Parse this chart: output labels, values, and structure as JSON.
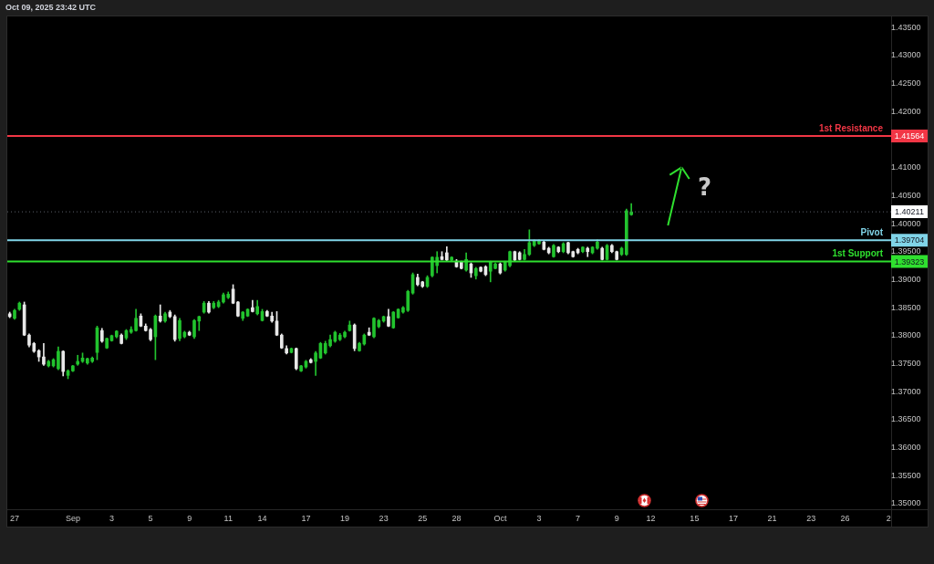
{
  "chart_data": {
    "type": "candlestick",
    "title": "Oct 09, 2025 23:42 UTC",
    "categories": [
      null,
      "27",
      null,
      null,
      null,
      null,
      null,
      null,
      null,
      null,
      null,
      null,
      null,
      "Sep",
      null,
      null,
      null,
      null,
      null,
      null,
      null,
      "3",
      null,
      null,
      null,
      null,
      null,
      null,
      null,
      "5",
      null,
      null,
      null,
      null,
      null,
      null,
      null,
      "9",
      null,
      null,
      null,
      null,
      null,
      null,
      null,
      "11",
      null,
      null,
      null,
      null,
      null,
      null,
      "14",
      null,
      null,
      null,
      null,
      null,
      null,
      null,
      null,
      "17",
      null,
      null,
      null,
      null,
      null,
      null,
      null,
      "19",
      null,
      null,
      null,
      null,
      null,
      null,
      null,
      "23",
      null,
      null,
      null,
      null,
      null,
      null,
      null,
      "25",
      null,
      null,
      null,
      null,
      null,
      null,
      "28",
      null,
      null,
      null,
      null,
      null,
      null,
      null,
      null,
      "Oct",
      null,
      null,
      null,
      null,
      null,
      null,
      null,
      "3",
      null,
      null,
      null,
      null,
      null,
      null,
      null,
      "7",
      null,
      null,
      null,
      null,
      null,
      null,
      null,
      "9",
      null,
      null,
      null,
      null,
      null,
      null,
      "12",
      null,
      null,
      null,
      null,
      null,
      null,
      null,
      null,
      "15",
      null,
      null,
      null,
      null,
      null,
      null,
      null,
      "17",
      null,
      null,
      null,
      null,
      null,
      null,
      null,
      "21",
      null,
      null,
      null,
      null,
      null,
      null,
      null,
      "23",
      null,
      null,
      null,
      null,
      null,
      null,
      "26",
      null,
      null,
      null,
      null,
      null,
      null,
      null,
      null,
      "2"
    ],
    "ohlc": [
      [
        1.3839,
        1.3842,
        1.3832,
        1.3834
      ],
      [
        1.3831,
        1.3847,
        1.3829,
        1.3845
      ],
      [
        1.3847,
        1.386,
        1.3845,
        1.3858
      ],
      [
        1.3855,
        1.386,
        1.38,
        1.3801
      ],
      [
        1.3801,
        1.3803,
        1.378,
        1.3783
      ],
      [
        1.3786,
        1.3788,
        1.377,
        1.3772
      ],
      [
        1.3773,
        1.3775,
        1.3754,
        1.3762
      ],
      [
        1.3762,
        1.3786,
        1.3747,
        1.3749
      ],
      [
        1.3746,
        1.3756,
        1.3744,
        1.3754
      ],
      [
        1.3746,
        1.3759,
        1.3744,
        1.3757
      ],
      [
        1.3741,
        1.378,
        1.3739,
        1.3772
      ],
      [
        1.3772,
        1.3773,
        1.3728,
        1.3736
      ],
      [
        1.3729,
        1.3739,
        1.3723,
        1.3737
      ],
      [
        1.3737,
        1.3747,
        1.3736,
        1.3746
      ],
      [
        1.3749,
        1.3765,
        1.3747,
        1.3754
      ],
      [
        1.3754,
        1.3769,
        1.3752,
        1.376
      ],
      [
        1.3751,
        1.376,
        1.3749,
        1.3759
      ],
      [
        1.3754,
        1.3762,
        1.3752,
        1.376
      ],
      [
        1.377,
        1.3817,
        1.3757,
        1.3814
      ],
      [
        1.3809,
        1.3813,
        1.3788,
        1.379
      ],
      [
        1.3778,
        1.3796,
        1.3777,
        1.3795
      ],
      [
        1.3791,
        1.3801,
        1.379,
        1.38
      ],
      [
        1.3798,
        1.3809,
        1.3796,
        1.3808
      ],
      [
        1.3801,
        1.3803,
        1.3785,
        1.3786
      ],
      [
        1.3796,
        1.3811,
        1.3793,
        1.3809
      ],
      [
        1.3806,
        1.3816,
        1.3804,
        1.3811
      ],
      [
        1.3809,
        1.3847,
        1.3808,
        1.3831
      ],
      [
        1.3835,
        1.3839,
        1.3816,
        1.3817
      ],
      [
        1.3817,
        1.3821,
        1.3808,
        1.3809
      ],
      [
        1.3811,
        1.3813,
        1.3791,
        1.3793
      ],
      [
        1.3798,
        1.3837,
        1.3757,
        1.3835
      ],
      [
        1.3835,
        1.3855,
        1.3824,
        1.3826
      ],
      [
        1.3826,
        1.3842,
        1.3824,
        1.3839
      ],
      [
        1.3842,
        1.3845,
        1.3832,
        1.3834
      ],
      [
        1.3834,
        1.3837,
        1.379,
        1.3793
      ],
      [
        1.3795,
        1.3831,
        1.3791,
        1.3827
      ],
      [
        1.3798,
        1.3808,
        1.3796,
        1.3806
      ],
      [
        1.3806,
        1.3808,
        1.38,
        1.3801
      ],
      [
        1.3798,
        1.3829,
        1.3795,
        1.3827
      ],
      [
        1.3826,
        1.3835,
        1.3809,
        1.3834
      ],
      [
        1.3842,
        1.3861,
        1.384,
        1.3858
      ],
      [
        1.3858,
        1.3861,
        1.384,
        1.3842
      ],
      [
        1.385,
        1.3861,
        1.3848,
        1.3858
      ],
      [
        1.3852,
        1.3863,
        1.385,
        1.386
      ],
      [
        1.386,
        1.3876,
        1.3858,
        1.3873
      ],
      [
        1.3868,
        1.3878,
        1.3866,
        1.3874
      ],
      [
        1.3883,
        1.3891,
        1.3857,
        1.3858
      ],
      [
        1.386,
        1.3861,
        1.3834,
        1.3835
      ],
      [
        1.3831,
        1.3843,
        1.3827,
        1.3842
      ],
      [
        1.3835,
        1.3848,
        1.3834,
        1.3847
      ],
      [
        1.385,
        1.3863,
        1.3842,
        1.3843
      ],
      [
        1.3839,
        1.3863,
        1.3837,
        1.3852
      ],
      [
        1.3827,
        1.3847,
        1.3826,
        1.3843
      ],
      [
        1.3843,
        1.3845,
        1.3834,
        1.3835
      ],
      [
        1.3835,
        1.3842,
        1.3824,
        1.3826
      ],
      [
        1.3826,
        1.3843,
        1.38,
        1.3801
      ],
      [
        1.3801,
        1.3803,
        1.3777,
        1.3778
      ],
      [
        1.3777,
        1.3782,
        1.3767,
        1.3769
      ],
      [
        1.377,
        1.3778,
        1.3769,
        1.3777
      ],
      [
        1.3777,
        1.3778,
        1.3739,
        1.3741
      ],
      [
        1.3737,
        1.3747,
        1.3736,
        1.3746
      ],
      [
        1.3744,
        1.3756,
        1.3742,
        1.3754
      ],
      [
        1.3757,
        1.3759,
        1.3751,
        1.3752
      ],
      [
        1.3754,
        1.3772,
        1.3729,
        1.3769
      ],
      [
        1.376,
        1.3788,
        1.3759,
        1.3786
      ],
      [
        1.3769,
        1.379,
        1.3767,
        1.3786
      ],
      [
        1.3782,
        1.3801,
        1.378,
        1.3793
      ],
      [
        1.379,
        1.3808,
        1.3788,
        1.3806
      ],
      [
        1.3793,
        1.3804,
        1.3791,
        1.3801
      ],
      [
        1.3798,
        1.3808,
        1.3796,
        1.3806
      ],
      [
        1.3809,
        1.3826,
        1.3808,
        1.3819
      ],
      [
        1.3819,
        1.3821,
        1.3773,
        1.3777
      ],
      [
        1.3773,
        1.3788,
        1.3772,
        1.3786
      ],
      [
        1.3785,
        1.3803,
        1.3783,
        1.3801
      ],
      [
        1.3806,
        1.3814,
        1.38,
        1.3801
      ],
      [
        1.3798,
        1.3832,
        1.3796,
        1.3831
      ],
      [
        1.3816,
        1.3829,
        1.3814,
        1.3827
      ],
      [
        1.3826,
        1.3835,
        1.3824,
        1.3834
      ],
      [
        1.3834,
        1.3847,
        1.3816,
        1.3817
      ],
      [
        1.3814,
        1.3843,
        1.3813,
        1.3842
      ],
      [
        1.3832,
        1.3848,
        1.3831,
        1.3847
      ],
      [
        1.3842,
        1.3852,
        1.384,
        1.385
      ],
      [
        1.3845,
        1.3881,
        1.3843,
        1.3879
      ],
      [
        1.3876,
        1.3912,
        1.3874,
        1.3909
      ],
      [
        1.3904,
        1.391,
        1.3889,
        1.3891
      ],
      [
        1.3896,
        1.3897,
        1.3886,
        1.3888
      ],
      [
        1.3888,
        1.3907,
        1.3886,
        1.3904
      ],
      [
        1.3907,
        1.3941,
        1.3905,
        1.394
      ],
      [
        1.3925,
        1.395,
        1.3912,
        1.394
      ],
      [
        1.3941,
        1.395,
        1.3935,
        1.3936
      ],
      [
        1.3948,
        1.3959,
        1.3933,
        1.3935
      ],
      [
        1.3935,
        1.3941,
        1.3933,
        1.394
      ],
      [
        1.3933,
        1.3936,
        1.3922,
        1.3923
      ],
      [
        1.3932,
        1.3933,
        1.3919,
        1.392
      ],
      [
        1.3917,
        1.3948,
        1.3915,
        1.3936
      ],
      [
        1.3928,
        1.393,
        1.3904,
        1.3912
      ],
      [
        1.3907,
        1.3922,
        1.3901,
        1.392
      ],
      [
        1.3922,
        1.3923,
        1.3914,
        1.3915
      ],
      [
        1.3923,
        1.3925,
        1.3907,
        1.3909
      ],
      [
        1.3915,
        1.3933,
        1.3896,
        1.3932
      ],
      [
        1.392,
        1.393,
        1.3919,
        1.3928
      ],
      [
        1.3928,
        1.393,
        1.391,
        1.3912
      ],
      [
        1.3917,
        1.3933,
        1.3915,
        1.3932
      ],
      [
        1.3925,
        1.3951,
        1.3923,
        1.395
      ],
      [
        1.395,
        1.3951,
        1.3933,
        1.3935
      ],
      [
        1.3948,
        1.395,
        1.3935,
        1.3936
      ],
      [
        1.3936,
        1.3954,
        1.3935,
        1.3945
      ],
      [
        1.3945,
        1.3989,
        1.3943,
        1.3966
      ],
      [
        1.3961,
        1.3971,
        1.3959,
        1.3969
      ],
      [
        1.3964,
        1.3971,
        1.3963,
        1.3969
      ],
      [
        1.3967,
        1.3969,
        1.3953,
        1.3954
      ],
      [
        1.3956,
        1.3958,
        1.3946,
        1.3948
      ],
      [
        1.3941,
        1.3963,
        1.394,
        1.3961
      ],
      [
        1.3958,
        1.3959,
        1.3948,
        1.395
      ],
      [
        1.395,
        1.3966,
        1.3948,
        1.3964
      ],
      [
        1.3966,
        1.3967,
        1.3946,
        1.3948
      ],
      [
        1.395,
        1.3951,
        1.394,
        1.3941
      ],
      [
        1.3954,
        1.3956,
        1.3946,
        1.3948
      ],
      [
        1.395,
        1.3959,
        1.3948,
        1.3958
      ],
      [
        1.3956,
        1.3958,
        1.3941,
        1.395
      ],
      [
        1.3948,
        1.3959,
        1.3946,
        1.3958
      ],
      [
        1.3956,
        1.3971,
        1.3954,
        1.3967
      ],
      [
        1.3956,
        1.3958,
        1.3935,
        1.3936
      ],
      [
        1.3936,
        1.3963,
        1.3935,
        1.3961
      ],
      [
        1.3961,
        1.3963,
        1.3948,
        1.395
      ],
      [
        1.395,
        1.3951,
        1.3935,
        1.3936
      ],
      [
        1.3945,
        1.3958,
        1.3943,
        1.3956
      ],
      [
        1.3945,
        1.4026,
        1.3943,
        1.4023
      ],
      [
        1.4016,
        1.4036,
        1.4015,
        1.40211
      ],
      null,
      null,
      null,
      null,
      null,
      null,
      null,
      null,
      null,
      null,
      null,
      null,
      null,
      null,
      null,
      null,
      null,
      null,
      null,
      null,
      null,
      null,
      null,
      null,
      null,
      null,
      null,
      null,
      null,
      null,
      null,
      null,
      null,
      null,
      null,
      null,
      null,
      null,
      null,
      null,
      null,
      null,
      null,
      null,
      null,
      null,
      null,
      null,
      null,
      null,
      null,
      null,
      null
    ],
    "colors": [
      "#e8e8e8",
      "#22c32e",
      "#22c32e",
      "#e8e8e8",
      "#e8e8e8",
      "#e8e8e8",
      "#e8e8e8",
      "#e8e8e8",
      "#22c32e",
      "#22c32e",
      "#22c32e",
      "#e8e8e8",
      "#22c32e",
      "#22c32e",
      "#22c32e",
      "#22c32e",
      "#22c32e",
      "#22c32e",
      "#22c32e",
      "#e8e8e8",
      "#22c32e",
      "#22c32e",
      "#22c32e",
      "#e8e8e8",
      "#22c32e",
      "#22c32e",
      "#22c32e",
      "#e8e8e8",
      "#e8e8e8",
      "#e8e8e8",
      "#22c32e",
      "#e8e8e8",
      "#22c32e",
      "#e8e8e8",
      "#e8e8e8",
      "#22c32e",
      "#22c32e",
      "#e8e8e8",
      "#22c32e",
      "#22c32e",
      "#22c32e",
      "#e8e8e8",
      "#22c32e",
      "#22c32e",
      "#22c32e",
      "#22c32e",
      "#e8e8e8",
      "#e8e8e8",
      "#22c32e",
      "#22c32e",
      "#e8e8e8",
      "#22c32e",
      "#22c32e",
      "#e8e8e8",
      "#e8e8e8",
      "#e8e8e8",
      "#e8e8e8",
      "#e8e8e8",
      "#22c32e",
      "#e8e8e8",
      "#22c32e",
      "#22c32e",
      "#e8e8e8",
      "#22c32e",
      "#22c32e",
      "#22c32e",
      "#22c32e",
      "#22c32e",
      "#22c32e",
      "#22c32e",
      "#22c32e",
      "#e8e8e8",
      "#22c32e",
      "#22c32e",
      "#e8e8e8",
      "#22c32e",
      "#22c32e",
      "#22c32e",
      "#e8e8e8",
      "#22c32e",
      "#22c32e",
      "#22c32e",
      "#22c32e",
      "#22c32e",
      "#e8e8e8",
      "#e8e8e8",
      "#22c32e",
      "#22c32e",
      "#22c32e",
      "#e8e8e8",
      "#e8e8e8",
      "#22c32e",
      "#e8e8e8",
      "#e8e8e8",
      "#22c32e",
      "#e8e8e8",
      "#22c32e",
      "#e8e8e8",
      "#e8e8e8",
      "#22c32e",
      "#22c32e",
      "#e8e8e8",
      "#22c32e",
      "#22c32e",
      "#e8e8e8",
      "#e8e8e8",
      "#22c32e",
      "#22c32e",
      "#22c32e",
      "#22c32e",
      "#e8e8e8",
      "#e8e8e8",
      "#22c32e",
      "#e8e8e8",
      "#22c32e",
      "#e8e8e8",
      "#e8e8e8",
      "#e8e8e8",
      "#22c32e",
      "#e8e8e8",
      "#22c32e",
      "#22c32e",
      "#e8e8e8",
      "#22c32e",
      "#e8e8e8",
      "#e8e8e8",
      "#22c32e",
      "#22c32e",
      "#22c32e",
      null,
      null,
      null,
      null,
      null,
      null,
      null,
      null,
      null,
      null,
      null,
      null,
      null,
      null,
      null,
      null,
      null,
      null,
      null,
      null,
      null,
      null,
      null,
      null,
      null,
      null,
      null,
      null,
      null,
      null,
      null,
      null,
      null,
      null,
      null,
      null,
      null,
      null,
      null,
      null,
      null,
      null,
      null,
      null,
      null,
      null,
      null,
      null,
      null,
      null,
      null,
      null,
      null
    ],
    "ylim": [
      1.349,
      1.437
    ],
    "yticks": [
      {
        "value": 1.35,
        "label": "1.35000"
      },
      {
        "value": 1.355,
        "label": "1.35500"
      },
      {
        "value": 1.36,
        "label": "1.36000"
      },
      {
        "value": 1.365,
        "label": "1.36500"
      },
      {
        "value": 1.37,
        "label": "1.37000"
      },
      {
        "value": 1.375,
        "label": "1.37500"
      },
      {
        "value": 1.38,
        "label": "1.38000"
      },
      {
        "value": 1.385,
        "label": "1.38500"
      },
      {
        "value": 1.39,
        "label": "1.39000"
      },
      {
        "value": 1.395,
        "label": "1.39500"
      },
      {
        "value": 1.4,
        "label": "1.40000"
      },
      {
        "value": 1.405,
        "label": "1.40500"
      },
      {
        "value": 1.41,
        "label": "1.41000"
      },
      {
        "value": 1.42,
        "label": "1.42000"
      },
      {
        "value": 1.425,
        "label": "1.42500"
      },
      {
        "value": 1.43,
        "label": "1.43000"
      },
      {
        "value": 1.435,
        "label": "1.43500"
      }
    ],
    "ref_lines": [
      {
        "axis": "y",
        "value": 1.41564,
        "label": "1st Resistance",
        "color": "#f23645"
      },
      {
        "axis": "y",
        "value": 1.40211,
        "color": "#5d606b",
        "line_style": "dotted"
      },
      {
        "axis": "y",
        "value": 1.39704,
        "label": "Pivot",
        "color": "#80d4e8"
      },
      {
        "axis": "y",
        "value": 1.39323,
        "label": "1st Support",
        "color": "#2fe02f"
      }
    ],
    "annotations": [
      "?",
      {
        "text": "1.41564",
        "y": 1.41564
      },
      {
        "text": "1.40211",
        "y": 1.40211
      },
      {
        "text": "1.39704",
        "y": 1.39704
      },
      {
        "text": "1.39323",
        "y": 1.39323
      }
    ]
  }
}
